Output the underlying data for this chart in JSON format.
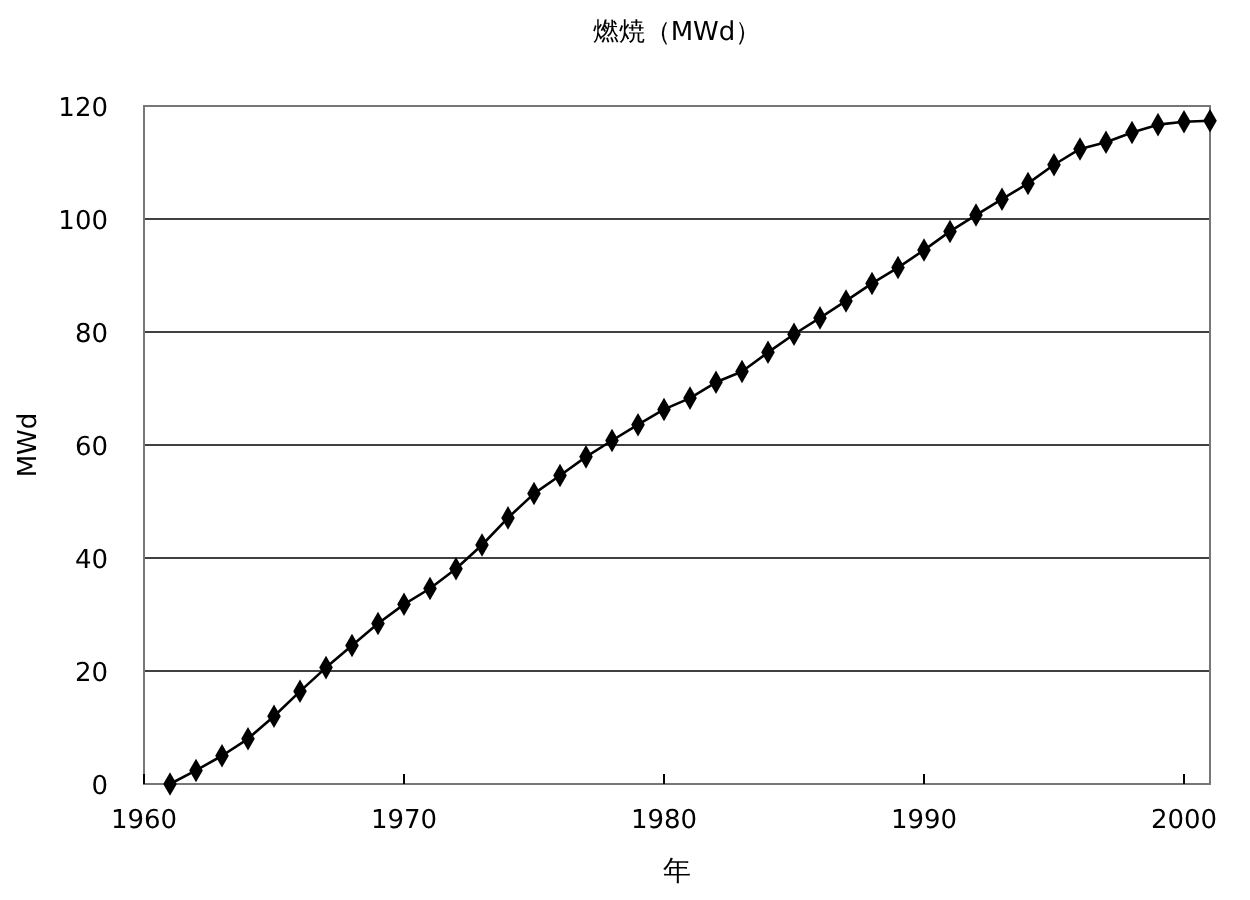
{
  "chart_data": {
    "type": "line",
    "title": "燃焼（MWd）",
    "xlabel": "年",
    "ylabel": "MWd",
    "x": [
      1961,
      1962,
      1963,
      1964,
      1965,
      1966,
      1967,
      1968,
      1969,
      1970,
      1971,
      1972,
      1973,
      1974,
      1975,
      1976,
      1977,
      1978,
      1979,
      1980,
      1981,
      1982,
      1983,
      1984,
      1985,
      1986,
      1987,
      1988,
      1989,
      1990,
      1991,
      1992,
      1993,
      1994,
      1995,
      1996,
      1997,
      1998,
      1999,
      2000,
      2001
    ],
    "series": [
      {
        "color": "#000000",
        "values": [
          0,
          2.4,
          5,
          8,
          12,
          16.4,
          20.6,
          24.5,
          28.4,
          31.8,
          34.6,
          38.1,
          42.3,
          47.1,
          51.4,
          54.6,
          57.9,
          60.8,
          63.6,
          66.3,
          68.3,
          71.1,
          73,
          76.4,
          79.6,
          82.5,
          85.5,
          88.6,
          91.4,
          94.5,
          97.8,
          100.7,
          103.5,
          106.3,
          109.6,
          112.4,
          113.6,
          115.3,
          116.7,
          117.2,
          117.4
        ]
      }
    ],
    "xlim": [
      1960,
      2001
    ],
    "xticks": [
      1960,
      1970,
      1980,
      1990,
      2000
    ],
    "ylim": [
      0,
      120
    ],
    "yticks": [
      0,
      20,
      40,
      60,
      80,
      100,
      120
    ],
    "grid": "y",
    "marker": "diamond",
    "line_style": "solid"
  }
}
